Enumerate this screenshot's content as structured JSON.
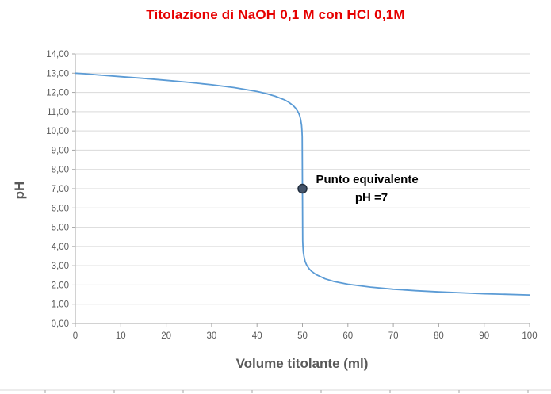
{
  "chart_data": {
    "type": "line",
    "title": "Titolazione di NaOH 0,1 M con HCl 0,1M",
    "xlabel": "Volume titolante (ml)",
    "ylabel": "pH",
    "xlim": [
      0,
      100
    ],
    "ylim": [
      0,
      14
    ],
    "x_ticks": [
      0,
      10,
      20,
      30,
      40,
      50,
      60,
      70,
      80,
      90,
      100
    ],
    "y_ticks": [
      0,
      1,
      2,
      3,
      4,
      5,
      6,
      7,
      8,
      9,
      10,
      11,
      12,
      13,
      14
    ],
    "y_tick_labels": [
      "0,00",
      "1,00",
      "2,00",
      "3,00",
      "4,00",
      "5,00",
      "6,00",
      "7,00",
      "8,00",
      "9,00",
      "10,00",
      "11,00",
      "12,00",
      "13,00",
      "14,00"
    ],
    "grid": "horizontal",
    "legend": "none",
    "series": [
      {
        "x": [
          0,
          2,
          5,
          10,
          15,
          20,
          25,
          30,
          35,
          40,
          42,
          44,
          46,
          47,
          48,
          48.5,
          49,
          49.2,
          49.4,
          49.6,
          49.8,
          49.9,
          49.95,
          50,
          50.05,
          50.1,
          50.2,
          50.4,
          50.6,
          50.8,
          51,
          51.5,
          52,
          53,
          55,
          57,
          60,
          65,
          70,
          75,
          80,
          85,
          90,
          95,
          100
        ],
        "y": [
          13.0,
          12.97,
          12.91,
          12.82,
          12.73,
          12.63,
          12.52,
          12.4,
          12.25,
          12.05,
          11.94,
          11.8,
          11.62,
          11.49,
          11.31,
          11.18,
          11.0,
          10.91,
          10.78,
          10.6,
          10.3,
          10.0,
          9.7,
          7.0,
          4.3,
          4.0,
          3.7,
          3.4,
          3.22,
          3.1,
          3.0,
          2.83,
          2.71,
          2.54,
          2.32,
          2.18,
          2.04,
          1.89,
          1.78,
          1.7,
          1.64,
          1.59,
          1.54,
          1.51,
          1.48
        ]
      }
    ],
    "annotation": {
      "lines": [
        "Punto equivalente",
        "pH =7"
      ],
      "point": {
        "x": 50,
        "y": 7
      }
    }
  },
  "colors": {
    "title": "#e60000",
    "axis_text": "#595959",
    "gridline": "#d9d9d9",
    "axis_line": "#a6a6a6",
    "curve": "#5b9bd5",
    "marker_fill": "#44546a",
    "marker_stroke": "#222f3f",
    "annotation_text": "#000000"
  }
}
